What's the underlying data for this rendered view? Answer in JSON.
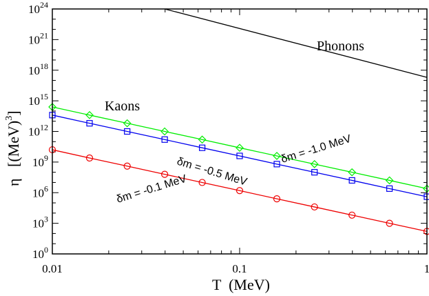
{
  "chart_data": {
    "type": "line",
    "xlabel": "T  (MeV)",
    "ylabel": "η   [(MeV)",
    "ylabel_exponent": "3",
    "ylabel_close": "]",
    "x_scale": "log",
    "y_scale": "log",
    "xlim": [
      0.01,
      1
    ],
    "ylim": [
      1,
      1e+24
    ],
    "x_ticks": [
      {
        "value": 0.01,
        "label": "0.01"
      },
      {
        "value": 0.1,
        "label": "0.1"
      },
      {
        "value": 1,
        "label": "1"
      }
    ],
    "y_ticks": [
      {
        "value": 1,
        "base": "10",
        "exp": "0"
      },
      {
        "value": 1000.0,
        "base": "10",
        "exp": "3"
      },
      {
        "value": 1000000.0,
        "base": "10",
        "exp": "6"
      },
      {
        "value": 1000000000.0,
        "base": "10",
        "exp": "9"
      },
      {
        "value": 1000000000000.0,
        "base": "10",
        "exp": "12"
      },
      {
        "value": 1000000000000000.0,
        "base": "10",
        "exp": "15"
      },
      {
        "value": 1e+18,
        "base": "10",
        "exp": "18"
      },
      {
        "value": 1e+21,
        "base": "10",
        "exp": "21"
      },
      {
        "value": 1e+24,
        "base": "10",
        "exp": "24"
      }
    ],
    "grid": false,
    "series": [
      {
        "label": "δm = -1.0 MeV",
        "color": "#00ee00",
        "marker": "diamond",
        "x": [
          0.01,
          0.0158,
          0.0251,
          0.0398,
          0.0631,
          0.1,
          0.158,
          0.251,
          0.398,
          0.631,
          1.0
        ],
        "y": [
          250000000000000.0,
          40000000000000.0,
          6300000000000.0,
          1000000000000.0,
          160000000000.0,
          25000000000.0,
          4000000000.0,
          630000000.0,
          100000000.0,
          16000000.0,
          2500000.0
        ]
      },
      {
        "label": "δm = -0.5 MeV",
        "color": "#0000ee",
        "marker": "square",
        "x": [
          0.01,
          0.0158,
          0.0251,
          0.0398,
          0.0631,
          0.1,
          0.158,
          0.251,
          0.398,
          0.631,
          1.0
        ],
        "y": [
          40000000000000.0,
          6300000000000.0,
          1000000000000.0,
          160000000000.0,
          25000000000.0,
          4000000000.0,
          630000000.0,
          100000000.0,
          16000000.0,
          2500000.0,
          400000.0
        ]
      },
      {
        "label": "δm = -0.1 MeV",
        "color": "#ee0000",
        "marker": "circle",
        "x": [
          0.01,
          0.0158,
          0.0251,
          0.0398,
          0.0631,
          0.1,
          0.158,
          0.251,
          0.398,
          0.631,
          1.0
        ],
        "y": [
          16000000000.0,
          2500000000.0,
          400000000.0,
          63000000.0,
          10000000.0,
          1600000.0,
          250000.0,
          40000.0,
          6300.0,
          1000.0,
          160.0
        ]
      },
      {
        "label": "Phonons",
        "color": "#000000",
        "marker": "none",
        "x": [
          0.0398,
          1.0
        ],
        "y": [
          1e+24,
          2e+17
        ]
      }
    ],
    "annotations": {
      "kaons": "Kaons",
      "phonons": "Phonons",
      "dm1": "δm = -1.0 MeV",
      "dm05": "δm = -0.5 MeV",
      "dm01": "δm = -0.1 MeV"
    }
  }
}
